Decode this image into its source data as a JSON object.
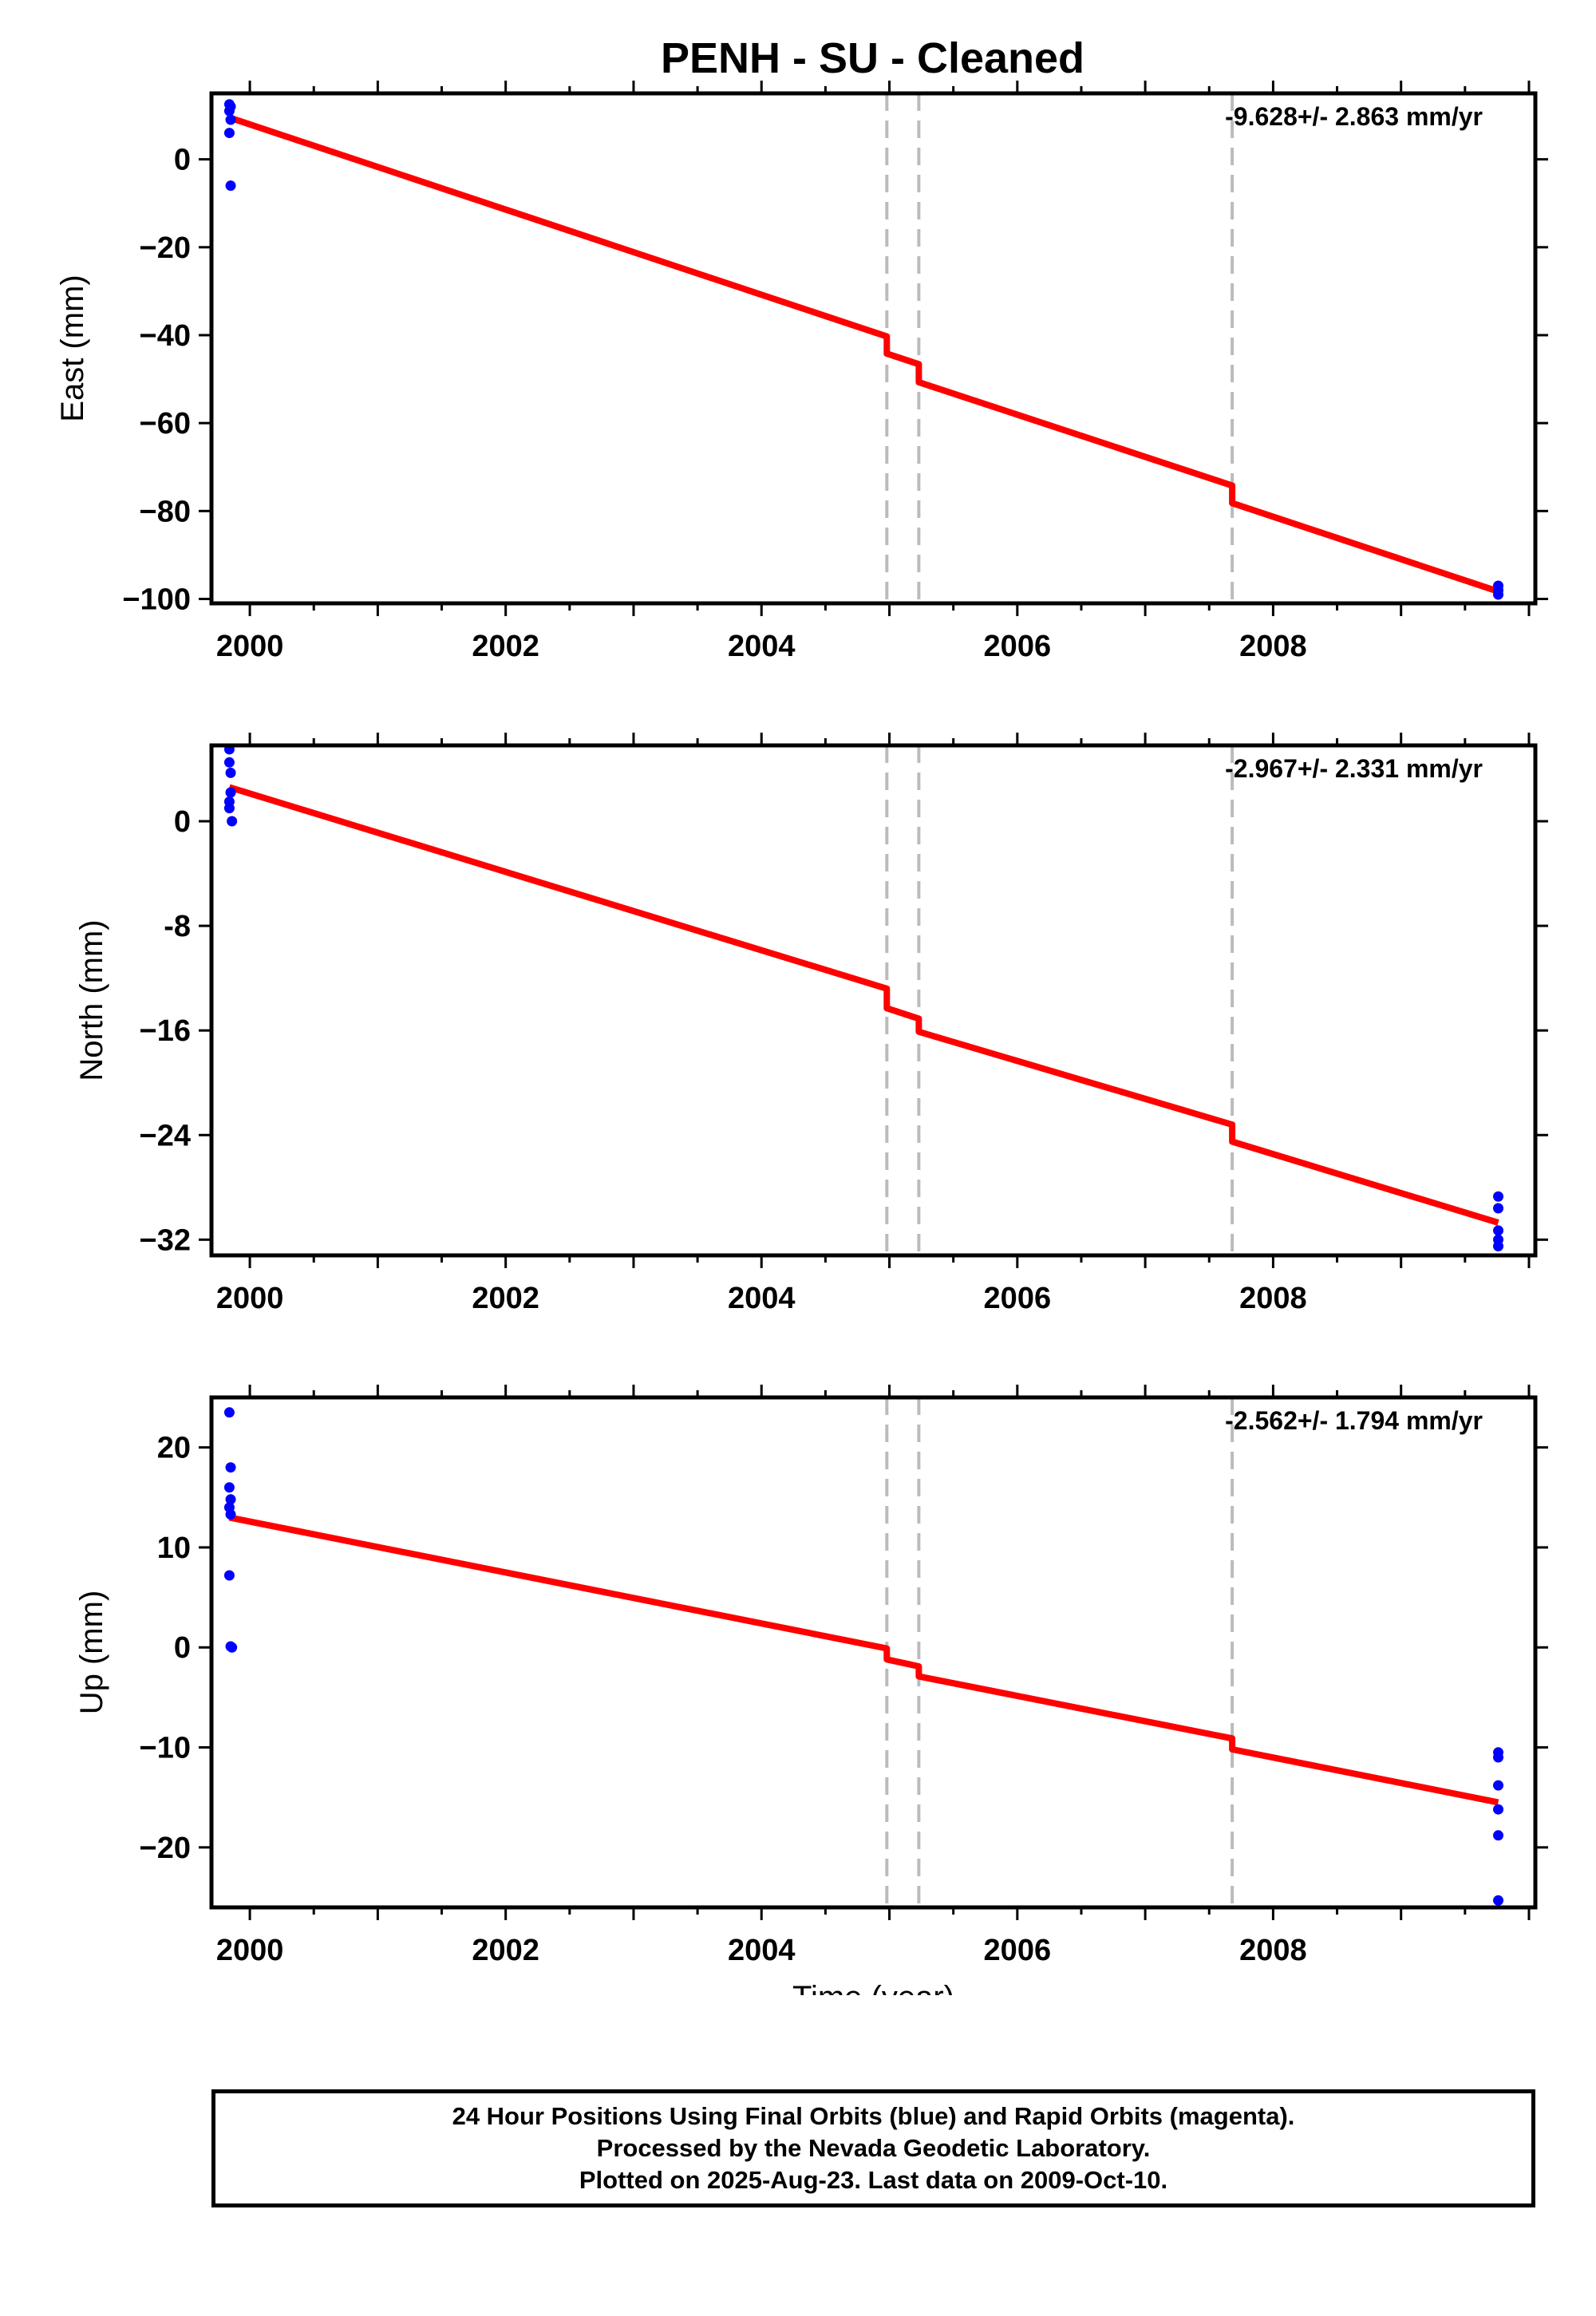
{
  "title": "PENH  - SU - Cleaned",
  "footer": {
    "line1": "24 Hour Positions Using Final Orbits (blue) and Rapid Orbits (magenta).",
    "line2": "Processed by the Nevada Geodetic Laboratory.",
    "line3": "Plotted on 2025-Aug-23. Last data on 2009-Oct-10."
  },
  "colors": {
    "points": "#0000ff",
    "fit": "#ff0000",
    "breaks": "#bbbbbb",
    "axes": "#000000"
  },
  "chart_data": [
    {
      "type": "scatter",
      "xlabel": "",
      "ylabel": "East (mm)",
      "rate_label": "-9.628+/- 2.863 mm/yr",
      "xlim": [
        1999.7,
        2010.05
      ],
      "ylim": [
        -101,
        15
      ],
      "xticks": [
        2000,
        2002,
        2004,
        2006,
        2008
      ],
      "yticks": [
        0,
        -20,
        -40,
        -60,
        -80,
        -100
      ],
      "ytick_labels": [
        "0",
        "−20",
        "−40",
        "−60",
        "−80",
        "−100"
      ],
      "breaks": [
        2004.98,
        2005.23,
        2007.68
      ],
      "points": [
        {
          "x": 1999.84,
          "y": 12.5
        },
        {
          "x": 1999.84,
          "y": 11
        },
        {
          "x": 1999.85,
          "y": 12
        },
        {
          "x": 1999.85,
          "y": 9
        },
        {
          "x": 1999.84,
          "y": 6
        },
        {
          "x": 1999.85,
          "y": -6
        },
        {
          "x": 2009.76,
          "y": -97
        },
        {
          "x": 2009.76,
          "y": -98
        },
        {
          "x": 2009.76,
          "y": -99
        }
      ],
      "fit": [
        {
          "x": 1999.84,
          "y": 9.5
        },
        {
          "x": 2004.98,
          "y": -40.3
        },
        {
          "x": 2004.98,
          "y": -44.2
        },
        {
          "x": 2005.23,
          "y": -46.6
        },
        {
          "x": 2005.23,
          "y": -50.7
        },
        {
          "x": 2007.68,
          "y": -74.2
        },
        {
          "x": 2007.68,
          "y": -78.2
        },
        {
          "x": 2009.76,
          "y": -98.3
        }
      ]
    },
    {
      "type": "scatter",
      "xlabel": "",
      "ylabel": "North (mm)",
      "rate_label": "-2.967+/- 2.331 mm/yr",
      "xlim": [
        1999.7,
        2010.05
      ],
      "ylim": [
        -33.2,
        5.8
      ],
      "xticks": [
        2000,
        2002,
        2004,
        2006,
        2008
      ],
      "yticks": [
        0,
        -8,
        -16,
        -24,
        -32
      ],
      "ytick_labels": [
        "0",
        "-8",
        "−16",
        "−24",
        "−32"
      ],
      "breaks": [
        2004.98,
        2005.23,
        2007.68
      ],
      "points": [
        {
          "x": 1999.84,
          "y": 5.5
        },
        {
          "x": 1999.84,
          "y": 4.5
        },
        {
          "x": 1999.85,
          "y": 3.7
        },
        {
          "x": 1999.85,
          "y": 2.2
        },
        {
          "x": 1999.84,
          "y": 1.5
        },
        {
          "x": 1999.84,
          "y": 1
        },
        {
          "x": 1999.86,
          "y": 0
        },
        {
          "x": 2009.76,
          "y": -28.7
        },
        {
          "x": 2009.76,
          "y": -29.6
        },
        {
          "x": 2009.76,
          "y": -31.3
        },
        {
          "x": 2009.76,
          "y": -32
        },
        {
          "x": 2009.76,
          "y": -32.5
        }
      ],
      "fit": [
        {
          "x": 1999.84,
          "y": 2.6
        },
        {
          "x": 2004.98,
          "y": -12.8
        },
        {
          "x": 2004.98,
          "y": -14.3
        },
        {
          "x": 2005.23,
          "y": -15.1
        },
        {
          "x": 2005.23,
          "y": -16.1
        },
        {
          "x": 2007.68,
          "y": -23.2
        },
        {
          "x": 2007.68,
          "y": -24.5
        },
        {
          "x": 2009.76,
          "y": -30.7
        }
      ]
    },
    {
      "type": "scatter",
      "xlabel": "Time (year)",
      "ylabel": "Up (mm)",
      "rate_label": "-2.562+/- 1.794 mm/yr",
      "xlim": [
        1999.7,
        2010.05
      ],
      "ylim": [
        -26,
        25
      ],
      "xticks": [
        2000,
        2002,
        2004,
        2006,
        2008
      ],
      "yticks": [
        20,
        10,
        0,
        -10,
        -20
      ],
      "ytick_labels": [
        "20",
        "10",
        "0",
        "−10",
        "−20"
      ],
      "breaks": [
        2004.98,
        2005.23,
        2007.68
      ],
      "points": [
        {
          "x": 1999.84,
          "y": 23.5
        },
        {
          "x": 1999.85,
          "y": 18
        },
        {
          "x": 1999.84,
          "y": 16
        },
        {
          "x": 1999.85,
          "y": 14.8
        },
        {
          "x": 1999.84,
          "y": 14
        },
        {
          "x": 1999.85,
          "y": 13.3
        },
        {
          "x": 1999.84,
          "y": 7.2
        },
        {
          "x": 1999.85,
          "y": 0.1
        },
        {
          "x": 1999.86,
          "y": 0
        },
        {
          "x": 2009.76,
          "y": -10.5
        },
        {
          "x": 2009.76,
          "y": -11
        },
        {
          "x": 2009.76,
          "y": -13.8
        },
        {
          "x": 2009.76,
          "y": -16.2
        },
        {
          "x": 2009.76,
          "y": -18.8
        },
        {
          "x": 2009.76,
          "y": -25.3
        }
      ],
      "fit": [
        {
          "x": 1999.84,
          "y": 13
        },
        {
          "x": 2004.98,
          "y": -0.1
        },
        {
          "x": 2004.98,
          "y": -1.2
        },
        {
          "x": 2005.23,
          "y": -1.9
        },
        {
          "x": 2005.23,
          "y": -2.9
        },
        {
          "x": 2007.68,
          "y": -9.1
        },
        {
          "x": 2007.68,
          "y": -10.2
        },
        {
          "x": 2009.76,
          "y": -15.5
        }
      ]
    }
  ]
}
